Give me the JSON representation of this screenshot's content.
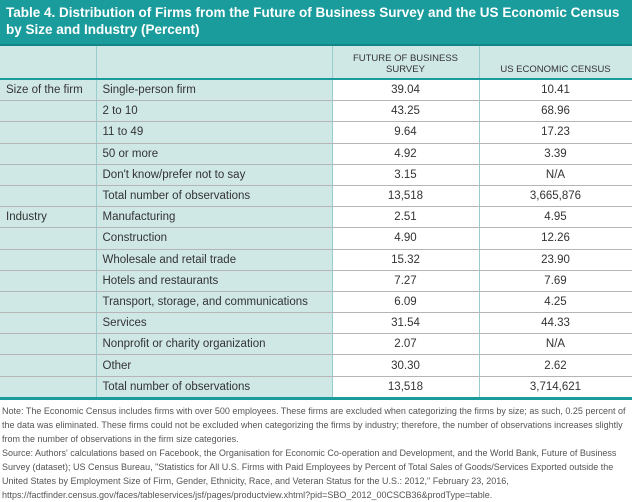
{
  "title": "Table 4. Distribution of Firms from the Future of Business Survey and the US Economic Census by Size and Industry (Percent)",
  "columns": [
    "",
    "",
    "FUTURE OF BUSINESS SURVEY",
    "US ECONOMIC CENSUS"
  ],
  "rows": [
    [
      "Size of the firm",
      "Single-person firm",
      "39.04",
      "10.41"
    ],
    [
      "",
      "2 to 10",
      "43.25",
      "68.96"
    ],
    [
      "",
      "11 to 49",
      "9.64",
      "17.23"
    ],
    [
      "",
      "50 or more",
      "4.92",
      "3.39"
    ],
    [
      "",
      "Don't know/prefer not to say",
      "3.15",
      "N/A"
    ],
    [
      "",
      "Total number of observations",
      "13,518",
      "3,665,876"
    ],
    [
      "Industry",
      "Manufacturing",
      "2.51",
      "4.95"
    ],
    [
      "",
      "Construction",
      "4.90",
      "12.26"
    ],
    [
      "",
      "Wholesale and retail trade",
      "15.32",
      "23.90"
    ],
    [
      "",
      "Hotels and restaurants",
      "7.27",
      "7.69"
    ],
    [
      "",
      "Transport, storage, and communications",
      "6.09",
      "4.25"
    ],
    [
      "",
      "Services",
      "31.54",
      "44.33"
    ],
    [
      "",
      "Nonprofit or charity organization",
      "2.07",
      "N/A"
    ],
    [
      "",
      "Other",
      "30.30",
      "2.62"
    ],
    [
      "",
      "Total number of observations",
      "13,518",
      "3,714,621"
    ]
  ],
  "note": "Note: The Economic Census includes firms with over 500 employees. These firms are excluded when categorizing the firms by size; as such, 0.25 percent of the data was eliminated. These firms could not be excluded when categorizing the firms by industry; therefore, the number of observations increases slightly from the number of observations in the firm size categories.",
  "source": "Source: Authors' calculations based on Facebook, the Organisation for Economic Co-operation and Development, and the World Bank, Future of Business Survey (dataset); US Census Bureau, \"Statistics for All U.S. Firms with Paid Employees by Percent of Total Sales of Goods/Services Exported outside the United States by Employment Size of Firm, Gender, Ethnicity, Race, and Veteran Status for the U.S.: 2012,\" February 23, 2016, https://factfinder.census.gov/faces/tableservices/jsf/pages/productview.xhtml?pid=SBO_2012_00CSCB36&prodType=table."
}
